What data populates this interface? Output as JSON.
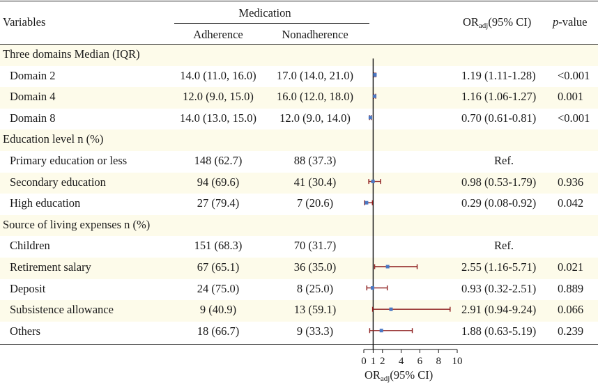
{
  "header": {
    "variables": "Variables",
    "medication": "Medication",
    "adherence": "Adherence",
    "nonadherence": "Nonadherence",
    "or_prefix": "OR",
    "or_sub": "adj",
    "or_suffix": "(95% CI)",
    "p_italic": "p",
    "p_suffix": "-value"
  },
  "rows": [
    {
      "kind": "section",
      "label": "Three domains  Median (IQR)"
    },
    {
      "kind": "data",
      "label": "Domain 2",
      "adherence": "14.0 (11.0, 16.0)",
      "nonadherence": "17.0 (14.0, 21.0)",
      "or_ci": "1.19 (1.11-1.28)",
      "p": "<0.001",
      "or": 1.19,
      "lo": 1.11,
      "hi": 1.28
    },
    {
      "kind": "data",
      "label": "Domain 4",
      "adherence": "12.0 (9.0, 15.0)",
      "nonadherence": "16.0 (12.0, 18.0)",
      "or_ci": "1.16 (1.06-1.27)",
      "p": "0.001",
      "or": 1.16,
      "lo": 1.06,
      "hi": 1.27
    },
    {
      "kind": "data",
      "label": "Domain 8",
      "adherence": "14.0 (13.0, 15.0)",
      "nonadherence": "12.0 (9.0, 14.0)",
      "or_ci": "0.70 (0.61-0.81)",
      "p": "<0.001",
      "or": 0.7,
      "lo": 0.61,
      "hi": 0.81
    },
    {
      "kind": "section",
      "label": "Education level  n (%)"
    },
    {
      "kind": "data",
      "label": "Primary education or less",
      "adherence": "148 (62.7)",
      "nonadherence": "88 (37.3)",
      "ref": "Ref."
    },
    {
      "kind": "data",
      "label": "Secondary education",
      "adherence": "94 (69.6)",
      "nonadherence": "41 (30.4)",
      "or_ci": "0.98 (0.53-1.79)",
      "p": "0.936",
      "or": 0.98,
      "lo": 0.53,
      "hi": 1.79
    },
    {
      "kind": "data",
      "label": "High education",
      "adherence": "27 (79.4)",
      "nonadherence": "7 (20.6)",
      "or_ci": "0.29 (0.08-0.92)",
      "p": "0.042",
      "or": 0.29,
      "lo": 0.08,
      "hi": 0.92
    },
    {
      "kind": "section",
      "label": "Source of  living expenses n (%)"
    },
    {
      "kind": "data",
      "label": "Children",
      "adherence": "151 (68.3)",
      "nonadherence": "70 (31.7)",
      "ref": "Ref."
    },
    {
      "kind": "data",
      "label": "Retirement salary",
      "adherence": "67 (65.1)",
      "nonadherence": "36 (35.0)",
      "or_ci": "2.55 (1.16-5.71)",
      "p": "0.021",
      "or": 2.55,
      "lo": 1.16,
      "hi": 5.71
    },
    {
      "kind": "data",
      "label": "Deposit",
      "adherence": "24 (75.0)",
      "nonadherence": "8 (25.0)",
      "or_ci": "0.93 (0.32-2.51)",
      "p": "0.889",
      "or": 0.93,
      "lo": 0.32,
      "hi": 2.51
    },
    {
      "kind": "data",
      "label": "Subsistence allowance",
      "adherence": "9 (40.9)",
      "nonadherence": "13 (59.1)",
      "or_ci": "2.91 (0.94-9.24)",
      "p": "0.066",
      "or": 2.91,
      "lo": 0.94,
      "hi": 9.24
    },
    {
      "kind": "data",
      "label": "Others",
      "adherence": "18 (66.7)",
      "nonadherence": "9 (33.3)",
      "or_ci": "1.88 (0.63-5.19)",
      "p": "0.239",
      "or": 1.88,
      "lo": 0.63,
      "hi": 5.19
    }
  ],
  "chart_data": {
    "type": "scatter",
    "title": "",
    "xlabel_prefix": "OR",
    "xlabel_sub": "adj",
    "xlabel_suffix": "(95% CI)",
    "x_ticks": [
      0,
      1,
      2,
      4,
      6,
      8,
      10
    ],
    "xlim": [
      0,
      10
    ],
    "reference_line": 1,
    "series": [
      {
        "name": "Domain 2",
        "or": 1.19,
        "lo": 1.11,
        "hi": 1.28
      },
      {
        "name": "Domain 4",
        "or": 1.16,
        "lo": 1.06,
        "hi": 1.27
      },
      {
        "name": "Domain 8",
        "or": 0.7,
        "lo": 0.61,
        "hi": 0.81
      },
      {
        "name": "Secondary education",
        "or": 0.98,
        "lo": 0.53,
        "hi": 1.79
      },
      {
        "name": "High education",
        "or": 0.29,
        "lo": 0.08,
        "hi": 0.92
      },
      {
        "name": "Retirement salary",
        "or": 2.55,
        "lo": 1.16,
        "hi": 5.71
      },
      {
        "name": "Deposit",
        "or": 0.93,
        "lo": 0.32,
        "hi": 2.51
      },
      {
        "name": "Subsistence allowance",
        "or": 2.91,
        "lo": 0.94,
        "hi": 9.24
      },
      {
        "name": "Others",
        "or": 1.88,
        "lo": 0.63,
        "hi": 5.19
      }
    ],
    "colors": {
      "point": "#4a78c4",
      "whisker": "#8b1a1a",
      "axis": "#111111"
    }
  }
}
